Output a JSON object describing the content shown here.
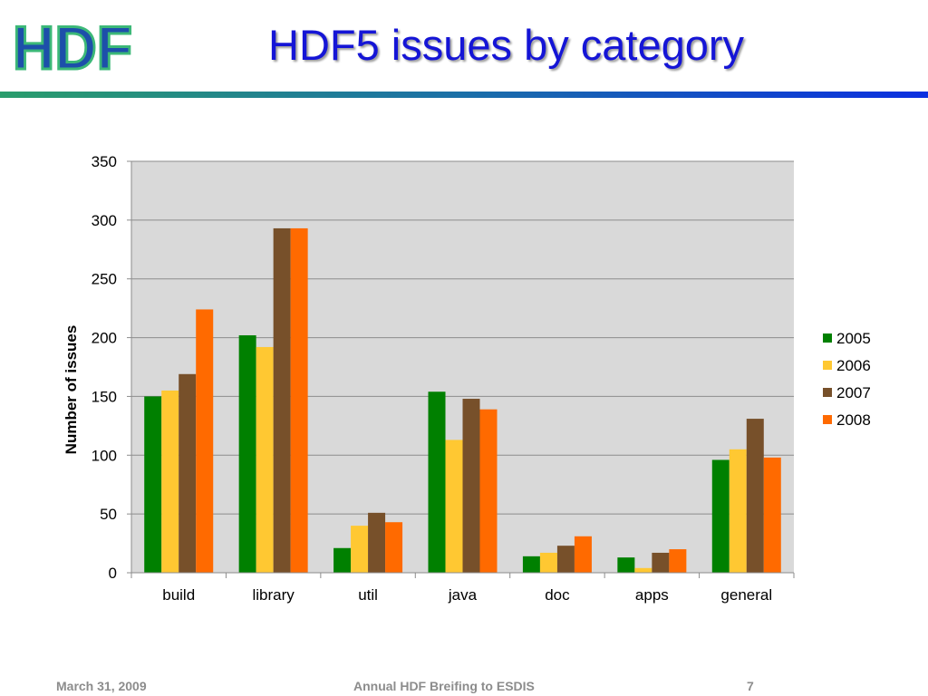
{
  "slide": {
    "title": "HDF5 issues by category",
    "logo_text": "HDF",
    "footer": {
      "date": "March 31, 2009",
      "center": "Annual HDF Breifing to ESDIS",
      "page": "7"
    }
  },
  "colors": {
    "title": "#1515d6",
    "logo_dark": "#1d4faa",
    "logo_green": "#3cb878",
    "plot_background": "#d9d9d9",
    "gridline": "#8c8c8c"
  },
  "chart_data": {
    "type": "bar",
    "title": "",
    "xlabel": "",
    "ylabel": "Number of issues",
    "ylim": [
      0,
      350
    ],
    "yticks": [
      0,
      50,
      100,
      150,
      200,
      250,
      300,
      350
    ],
    "grid": true,
    "legend_position": "right",
    "categories": [
      "build",
      "library",
      "util",
      "java",
      "doc",
      "apps",
      "general"
    ],
    "series": [
      {
        "name": "2005",
        "color": "#008000",
        "values": [
          150,
          202,
          21,
          154,
          14,
          13,
          96
        ]
      },
      {
        "name": "2006",
        "color": "#ffc832",
        "values": [
          155,
          192,
          40,
          113,
          17,
          4,
          105
        ]
      },
      {
        "name": "2007",
        "color": "#77502a",
        "values": [
          169,
          293,
          51,
          148,
          23,
          17,
          131
        ]
      },
      {
        "name": "2008",
        "color": "#ff6a00",
        "values": [
          224,
          293,
          43,
          139,
          31,
          20,
          98
        ]
      }
    ]
  }
}
